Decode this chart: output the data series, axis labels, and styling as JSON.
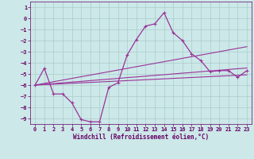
{
  "xlabel": "Windchill (Refroidissement éolien,°C)",
  "ylabel": "",
  "x": [
    0,
    1,
    2,
    3,
    4,
    5,
    6,
    7,
    8,
    9,
    10,
    11,
    12,
    13,
    14,
    15,
    16,
    17,
    18,
    19,
    20,
    21,
    22,
    23
  ],
  "y_main": [
    -6.0,
    -4.5,
    -6.8,
    -6.8,
    -7.6,
    -9.1,
    -9.3,
    -9.3,
    -6.2,
    -5.8,
    -3.3,
    -1.9,
    -0.7,
    -0.5,
    0.5,
    -1.3,
    -2.0,
    -3.2,
    -3.8,
    -4.8,
    -4.7,
    -4.7,
    -5.3,
    -4.7
  ],
  "y_line1": [
    -6.0,
    -5.85,
    -5.7,
    -5.55,
    -5.4,
    -5.25,
    -5.1,
    -4.95,
    -4.8,
    -4.65,
    -4.5,
    -4.35,
    -4.2,
    -4.05,
    -3.9,
    -3.75,
    -3.6,
    -3.45,
    -3.3,
    -3.15,
    -3.0,
    -2.85,
    -2.7,
    -2.55
  ],
  "y_line2": [
    -6.0,
    -5.93,
    -5.87,
    -5.8,
    -5.73,
    -5.67,
    -5.6,
    -5.53,
    -5.47,
    -5.4,
    -5.33,
    -5.27,
    -5.2,
    -5.13,
    -5.07,
    -5.0,
    -4.93,
    -4.87,
    -4.8,
    -4.73,
    -4.67,
    -4.6,
    -4.53,
    -4.47
  ],
  "y_line3": [
    -6.0,
    -5.96,
    -5.92,
    -5.88,
    -5.84,
    -5.8,
    -5.76,
    -5.72,
    -5.68,
    -5.64,
    -5.6,
    -5.56,
    -5.52,
    -5.48,
    -5.44,
    -5.4,
    -5.36,
    -5.32,
    -5.28,
    -5.24,
    -5.2,
    -5.16,
    -5.12,
    -5.08
  ],
  "ylim": [
    -9.5,
    1.5
  ],
  "xlim": [
    -0.5,
    23.5
  ],
  "yticks": [
    1,
    0,
    -1,
    -2,
    -3,
    -4,
    -5,
    -6,
    -7,
    -8,
    -9
  ],
  "xticks": [
    0,
    1,
    2,
    3,
    4,
    5,
    6,
    7,
    8,
    9,
    10,
    11,
    12,
    13,
    14,
    15,
    16,
    17,
    18,
    19,
    20,
    21,
    22,
    23
  ],
  "line_color": "#993399",
  "bg_color": "#cce8e8",
  "grid_color": "#aacccc",
  "label_color": "#660066",
  "tick_fontsize": 5.0,
  "xlabel_fontsize": 5.5,
  "linewidth_main": 0.9,
  "linewidth_ref": 0.8,
  "marker_size": 3.5,
  "marker_lw": 0.8
}
